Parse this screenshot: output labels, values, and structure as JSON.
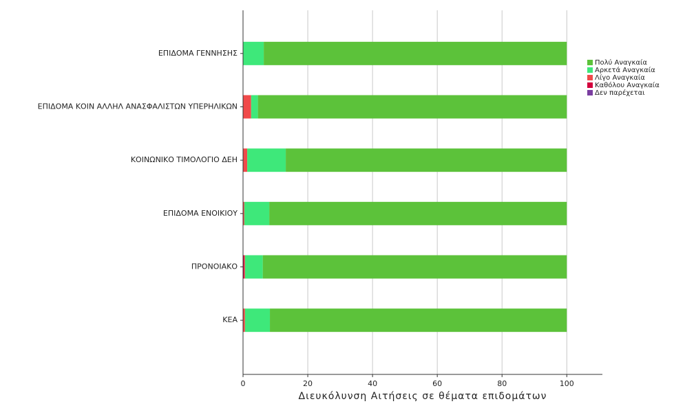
{
  "chart_data": {
    "type": "bar",
    "orientation": "horizontal",
    "stacked": true,
    "xlabel": "Διευκόλυνση Αιτήσεις σε θέματα επιδομάτων",
    "categories": [
      "ΕΠΙΔΟΜΑ ΓΕΝΝΗΣΗΣ",
      "ΕΠΙΔΟΜΑ ΚΟΙΝ ΑΛΛΗΛ ΑΝΑΣΦΑΛΙΣΤΩΝ ΥΠΕΡΗΛΙΚΩΝ",
      "ΚΟΙΝΩΝΙΚΟ ΤΙΜΟΛΟΓΙΟ ΔΕΗ",
      "ΕΠΙΔΟΜΑ ΕΝΟΙΚΙΟΥ",
      "ΠΡΟΝΟΙΑΚΟ",
      "ΚΕΑ"
    ],
    "series": [
      {
        "name": "Πολύ Αναγκαία",
        "color": "#5cc23a",
        "values": [
          93.6,
          95.4,
          86.8,
          91.9,
          93.9,
          91.7
        ]
      },
      {
        "name": "Αρκετά Αναγκαία",
        "color": "#3ee87a",
        "values": [
          6.4,
          2.1,
          11.9,
          7.7,
          5.5,
          7.7
        ]
      },
      {
        "name": "Λίγο Αναγκαία",
        "color": "#f04a4a",
        "values": [
          0,
          2.5,
          1.3,
          0.4,
          0.2,
          0.6
        ]
      },
      {
        "name": "Καθόλου Αναγκαία",
        "color": "#d3003d",
        "values": [
          0,
          0,
          0,
          0,
          0.4,
          0
        ]
      },
      {
        "name": "Δεν παρέχεται",
        "color": "#7a3da0",
        "values": [
          0,
          0,
          0,
          0,
          0,
          0
        ]
      }
    ],
    "xlim": [
      0,
      111
    ],
    "xticks": [
      0,
      20,
      40,
      60,
      80,
      100
    ],
    "grid": true,
    "legend": "right"
  }
}
